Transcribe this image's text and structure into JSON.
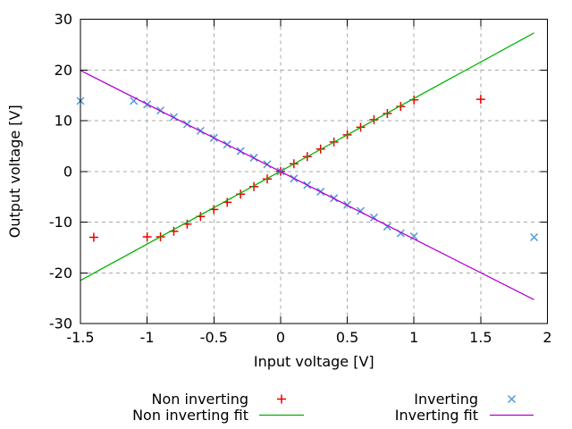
{
  "figure": {
    "background": "#ffffff",
    "description": "Op-amp output voltage vs input voltage: non-inverting and inverting measurements with linear fits"
  },
  "style": {
    "grid_color": "#a9a9a9",
    "axis_color": "#000000",
    "text_color": "#000000",
    "red": "#ee0000",
    "green": "#00b400",
    "blue": "#4d9bd9",
    "magenta": "#b400d3"
  },
  "chart_data": {
    "type": "scatter",
    "title": "",
    "xlabel": "Input voltage [V]",
    "ylabel": "Output voltage [V]",
    "xlim": [
      -1.5,
      2
    ],
    "ylim": [
      -30,
      30
    ],
    "grid": true,
    "legend_position": "below plot, two columns, no box",
    "xticks": {
      "values": [
        -1.5,
        -1,
        -0.5,
        0,
        0.5,
        1,
        1.5,
        2
      ],
      "labels": [
        "-1.5",
        "-1",
        "-0.5",
        "0",
        "0.5",
        "1",
        "1.5",
        "2"
      ]
    },
    "yticks": {
      "values": [
        -30,
        -20,
        -10,
        0,
        10,
        20,
        30
      ],
      "labels": [
        "-30",
        "-20",
        "-10",
        "0",
        "10",
        "20",
        "30"
      ]
    },
    "series": [
      {
        "name": "Non inverting",
        "type": "scatter",
        "marker": "plus",
        "color": "#ee0000",
        "points": [
          [
            -1.4,
            -13.0
          ],
          [
            -1.0,
            -12.9
          ],
          [
            -0.9,
            -12.9
          ],
          [
            -0.8,
            -11.8
          ],
          [
            -0.7,
            -10.4
          ],
          [
            -0.6,
            -8.9
          ],
          [
            -0.5,
            -7.5
          ],
          [
            -0.4,
            -6.1
          ],
          [
            -0.3,
            -4.5
          ],
          [
            -0.2,
            -3.0
          ],
          [
            -0.1,
            -1.5
          ],
          [
            0.0,
            0.0
          ],
          [
            0.1,
            1.5
          ],
          [
            0.2,
            2.9
          ],
          [
            0.3,
            4.4
          ],
          [
            0.4,
            5.8
          ],
          [
            0.5,
            7.2
          ],
          [
            0.6,
            8.7
          ],
          [
            0.7,
            10.2
          ],
          [
            0.8,
            11.4
          ],
          [
            0.9,
            12.8
          ],
          [
            1.0,
            14.1
          ],
          [
            1.5,
            14.2
          ]
        ]
      },
      {
        "name": "Non inverting fit",
        "type": "line",
        "color": "#00b400",
        "points": [
          [
            -1.5,
            -21.5
          ],
          [
            1.9,
            27.3
          ]
        ]
      },
      {
        "name": "Inverting",
        "type": "scatter",
        "marker": "cross",
        "color": "#4d9bd9",
        "points": [
          [
            -1.5,
            13.9
          ],
          [
            -1.1,
            13.9
          ],
          [
            -1.0,
            13.2
          ],
          [
            -0.9,
            12.0
          ],
          [
            -0.8,
            10.7
          ],
          [
            -0.7,
            9.3
          ],
          [
            -0.6,
            8.0
          ],
          [
            -0.5,
            6.6
          ],
          [
            -0.4,
            5.3
          ],
          [
            -0.3,
            4.0
          ],
          [
            -0.2,
            2.7
          ],
          [
            -0.1,
            1.4
          ],
          [
            0.0,
            0.0
          ],
          [
            0.1,
            -1.4
          ],
          [
            0.2,
            -2.7
          ],
          [
            0.3,
            -4.0
          ],
          [
            0.4,
            -5.3
          ],
          [
            0.5,
            -6.6
          ],
          [
            0.6,
            -7.8
          ],
          [
            0.7,
            -9.1
          ],
          [
            0.8,
            -10.9
          ],
          [
            0.9,
            -12.2
          ],
          [
            1.0,
            -12.8
          ],
          [
            1.9,
            -13.0
          ]
        ]
      },
      {
        "name": "Inverting fit",
        "type": "line",
        "color": "#b400d3",
        "points": [
          [
            -1.5,
            19.9
          ],
          [
            1.9,
            -25.3
          ]
        ]
      }
    ]
  }
}
